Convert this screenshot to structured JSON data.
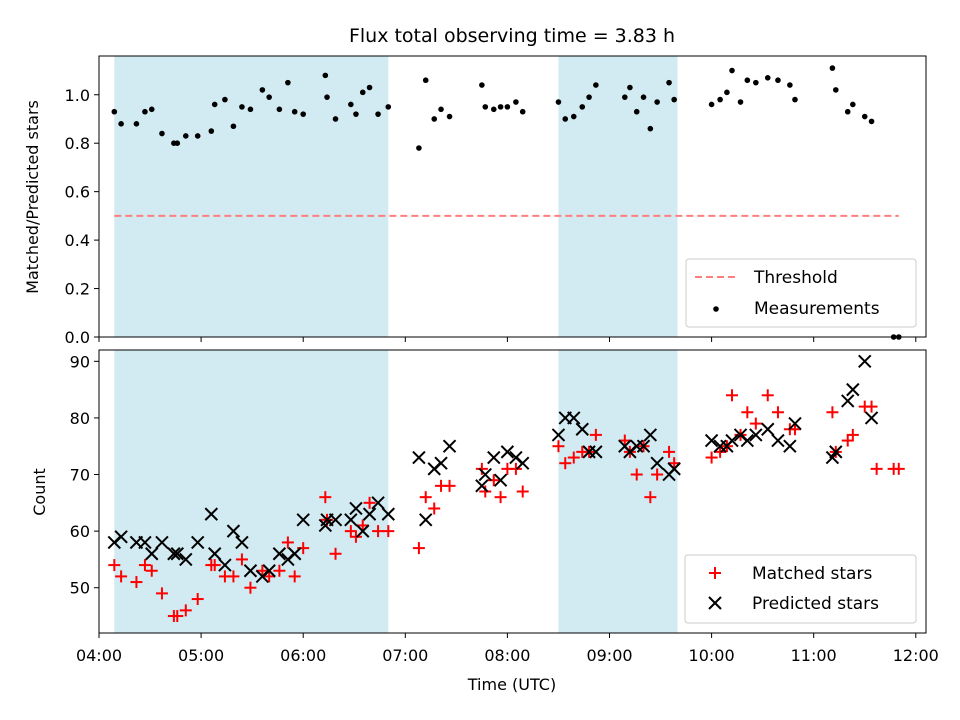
{
  "figure": {
    "title": "Flux total observing time = 3.83 h",
    "xlabel": "Time (UTC)"
  },
  "colors": {
    "shade": "#add8e6",
    "threshold": "#ff7f7f",
    "matched": "#ff0000",
    "predicted": "#000000",
    "measurement": "#000000"
  },
  "chart_data": [
    {
      "type": "scatter",
      "ylabel": "Matched/Predicted stars",
      "xlim": [
        "04:00",
        "12:06"
      ],
      "ylim": [
        0,
        1.16
      ],
      "yticks": [
        0.0,
        0.2,
        0.4,
        0.6,
        0.8,
        1.0
      ],
      "grid": false,
      "legend_position": "lower-right",
      "shaded_intervals": [
        [
          "04:09",
          "06:50"
        ],
        [
          "08:30",
          "09:40"
        ]
      ],
      "threshold": {
        "name": "Threshold",
        "value": 0.5,
        "x_range": [
          "04:09",
          "11:50"
        ]
      },
      "series": [
        {
          "name": "Measurements",
          "points": [
            [
              "04:09",
              0.93
            ],
            [
              "04:13",
              0.88
            ],
            [
              "04:22",
              0.88
            ],
            [
              "04:27",
              0.93
            ],
            [
              "04:31",
              0.94
            ],
            [
              "04:37",
              0.84
            ],
            [
              "04:44",
              0.8
            ],
            [
              "04:46",
              0.8
            ],
            [
              "04:51",
              0.83
            ],
            [
              "04:58",
              0.83
            ],
            [
              "05:06",
              0.85
            ],
            [
              "05:08",
              0.96
            ],
            [
              "05:14",
              0.98
            ],
            [
              "05:19",
              0.87
            ],
            [
              "05:24",
              0.95
            ],
            [
              "05:29",
              0.94
            ],
            [
              "05:36",
              1.02
            ],
            [
              "05:40",
              0.99
            ],
            [
              "05:46",
              0.94
            ],
            [
              "05:51",
              1.05
            ],
            [
              "05:55",
              0.93
            ],
            [
              "06:00",
              0.92
            ],
            [
              "06:13",
              1.08
            ],
            [
              "06:14",
              0.99
            ],
            [
              "06:19",
              0.9
            ],
            [
              "06:28",
              0.96
            ],
            [
              "06:31",
              0.92
            ],
            [
              "06:35",
              1.01
            ],
            [
              "06:39",
              1.03
            ],
            [
              "06:44",
              0.92
            ],
            [
              "06:50",
              0.95
            ],
            [
              "07:08",
              0.78
            ],
            [
              "07:12",
              1.06
            ],
            [
              "07:17",
              0.9
            ],
            [
              "07:21",
              0.94
            ],
            [
              "07:26",
              0.91
            ],
            [
              "07:45",
              1.04
            ],
            [
              "07:47",
              0.95
            ],
            [
              "07:52",
              0.94
            ],
            [
              "07:56",
              0.95
            ],
            [
              "08:00",
              0.95
            ],
            [
              "08:05",
              0.97
            ],
            [
              "08:09",
              0.93
            ],
            [
              "08:30",
              0.97
            ],
            [
              "08:34",
              0.9
            ],
            [
              "08:39",
              0.91
            ],
            [
              "08:44",
              0.95
            ],
            [
              "08:48",
              0.99
            ],
            [
              "08:52",
              1.04
            ],
            [
              "09:09",
              0.99
            ],
            [
              "09:12",
              1.03
            ],
            [
              "09:16",
              0.93
            ],
            [
              "09:20",
              0.99
            ],
            [
              "09:24",
              0.86
            ],
            [
              "09:28",
              0.97
            ],
            [
              "09:35",
              1.05
            ],
            [
              "09:38",
              0.98
            ],
            [
              "10:00",
              0.96
            ],
            [
              "10:05",
              0.98
            ],
            [
              "10:09",
              1.01
            ],
            [
              "10:12",
              1.1
            ],
            [
              "10:17",
              0.97
            ],
            [
              "10:21",
              1.06
            ],
            [
              "10:26",
              1.05
            ],
            [
              "10:33",
              1.07
            ],
            [
              "10:39",
              1.06
            ],
            [
              "10:46",
              1.04
            ],
            [
              "10:49",
              0.98
            ],
            [
              "11:11",
              1.11
            ],
            [
              "11:13",
              1.02
            ],
            [
              "11:20",
              0.93
            ],
            [
              "11:23",
              0.96
            ],
            [
              "11:30",
              0.91
            ],
            [
              "11:34",
              0.89
            ],
            [
              "11:47",
              0.0
            ],
            [
              "11:50",
              0.0
            ]
          ]
        }
      ]
    },
    {
      "type": "scatter",
      "ylabel": "Count",
      "xlim": [
        "04:00",
        "12:06"
      ],
      "ylim": [
        42,
        92
      ],
      "yticks": [
        50,
        60,
        70,
        80,
        90
      ],
      "xticks": [
        "04:00",
        "05:00",
        "06:00",
        "07:00",
        "08:00",
        "09:00",
        "10:00",
        "11:00",
        "12:00"
      ],
      "grid": false,
      "legend_position": "lower-right",
      "shaded_intervals": [
        [
          "04:09",
          "06:50"
        ],
        [
          "08:30",
          "09:40"
        ]
      ],
      "series": [
        {
          "name": "Matched stars",
          "points": [
            [
              "04:09",
              54
            ],
            [
              "04:13",
              52
            ],
            [
              "04:22",
              51
            ],
            [
              "04:27",
              54
            ],
            [
              "04:31",
              53
            ],
            [
              "04:37",
              49
            ],
            [
              "04:44",
              45
            ],
            [
              "04:46",
              45
            ],
            [
              "04:51",
              46
            ],
            [
              "04:58",
              48
            ],
            [
              "05:06",
              54
            ],
            [
              "05:08",
              54
            ],
            [
              "05:14",
              52
            ],
            [
              "05:19",
              52
            ],
            [
              "05:24",
              55
            ],
            [
              "05:29",
              50
            ],
            [
              "05:36",
              53
            ],
            [
              "05:40",
              52
            ],
            [
              "05:46",
              53
            ],
            [
              "05:51",
              58
            ],
            [
              "05:55",
              52
            ],
            [
              "06:00",
              57
            ],
            [
              "06:13",
              66
            ],
            [
              "06:14",
              62
            ],
            [
              "06:19",
              56
            ],
            [
              "06:28",
              60
            ],
            [
              "06:31",
              59
            ],
            [
              "06:35",
              61
            ],
            [
              "06:39",
              65
            ],
            [
              "06:44",
              60
            ],
            [
              "06:50",
              60
            ],
            [
              "07:08",
              57
            ],
            [
              "07:12",
              66
            ],
            [
              "07:17",
              64
            ],
            [
              "07:21",
              68
            ],
            [
              "07:26",
              68
            ],
            [
              "07:45",
              71
            ],
            [
              "07:47",
              67
            ],
            [
              "07:52",
              69
            ],
            [
              "07:56",
              66
            ],
            [
              "08:00",
              71
            ],
            [
              "08:05",
              71
            ],
            [
              "08:09",
              67
            ],
            [
              "08:30",
              75
            ],
            [
              "08:34",
              72
            ],
            [
              "08:39",
              73
            ],
            [
              "08:44",
              74
            ],
            [
              "08:48",
              74
            ],
            [
              "08:52",
              77
            ],
            [
              "09:09",
              76
            ],
            [
              "09:12",
              74
            ],
            [
              "09:16",
              70
            ],
            [
              "09:20",
              75
            ],
            [
              "09:24",
              66
            ],
            [
              "09:28",
              70
            ],
            [
              "09:35",
              74
            ],
            [
              "09:38",
              72
            ],
            [
              "10:00",
              73
            ],
            [
              "10:05",
              74
            ],
            [
              "10:09",
              75
            ],
            [
              "10:12",
              84
            ],
            [
              "10:17",
              77
            ],
            [
              "10:21",
              81
            ],
            [
              "10:26",
              79
            ],
            [
              "10:33",
              84
            ],
            [
              "10:39",
              81
            ],
            [
              "10:46",
              78
            ],
            [
              "10:49",
              78
            ],
            [
              "11:11",
              81
            ],
            [
              "11:13",
              74
            ],
            [
              "11:20",
              76
            ],
            [
              "11:23",
              77
            ],
            [
              "11:30",
              82
            ],
            [
              "11:34",
              82
            ],
            [
              "11:37",
              71
            ],
            [
              "11:47",
              71
            ],
            [
              "11:50",
              71
            ]
          ]
        },
        {
          "name": "Predicted stars",
          "points": [
            [
              "04:09",
              58
            ],
            [
              "04:13",
              59
            ],
            [
              "04:22",
              58
            ],
            [
              "04:27",
              58
            ],
            [
              "04:31",
              56
            ],
            [
              "04:37",
              58
            ],
            [
              "04:44",
              56
            ],
            [
              "04:46",
              56
            ],
            [
              "04:51",
              55
            ],
            [
              "04:58",
              58
            ],
            [
              "05:06",
              63
            ],
            [
              "05:08",
              56
            ],
            [
              "05:14",
              54
            ],
            [
              "05:19",
              60
            ],
            [
              "05:24",
              58
            ],
            [
              "05:29",
              53
            ],
            [
              "05:36",
              52
            ],
            [
              "05:40",
              53
            ],
            [
              "05:46",
              56
            ],
            [
              "05:51",
              55
            ],
            [
              "05:55",
              56
            ],
            [
              "06:00",
              62
            ],
            [
              "06:13",
              61
            ],
            [
              "06:14",
              62
            ],
            [
              "06:19",
              62
            ],
            [
              "06:28",
              62
            ],
            [
              "06:31",
              64
            ],
            [
              "06:35",
              60
            ],
            [
              "06:39",
              63
            ],
            [
              "06:44",
              65
            ],
            [
              "06:50",
              63
            ],
            [
              "07:08",
              73
            ],
            [
              "07:12",
              62
            ],
            [
              "07:17",
              71
            ],
            [
              "07:21",
              72
            ],
            [
              "07:26",
              75
            ],
            [
              "07:45",
              68
            ],
            [
              "07:47",
              70
            ],
            [
              "07:52",
              73
            ],
            [
              "07:56",
              69
            ],
            [
              "08:00",
              74
            ],
            [
              "08:05",
              73
            ],
            [
              "08:09",
              72
            ],
            [
              "08:30",
              77
            ],
            [
              "08:34",
              80
            ],
            [
              "08:39",
              80
            ],
            [
              "08:44",
              78
            ],
            [
              "08:48",
              74
            ],
            [
              "08:52",
              74
            ],
            [
              "09:09",
              75
            ],
            [
              "09:12",
              74
            ],
            [
              "09:16",
              75
            ],
            [
              "09:20",
              75
            ],
            [
              "09:24",
              77
            ],
            [
              "09:28",
              72
            ],
            [
              "09:35",
              70
            ],
            [
              "09:38",
              71
            ],
            [
              "10:00",
              76
            ],
            [
              "10:05",
              75
            ],
            [
              "10:09",
              75
            ],
            [
              "10:12",
              76
            ],
            [
              "10:17",
              77
            ],
            [
              "10:21",
              76
            ],
            [
              "10:26",
              77
            ],
            [
              "10:33",
              78
            ],
            [
              "10:39",
              76
            ],
            [
              "10:46",
              75
            ],
            [
              "10:49",
              79
            ],
            [
              "11:11",
              73
            ],
            [
              "11:13",
              74
            ],
            [
              "11:20",
              83
            ],
            [
              "11:23",
              85
            ],
            [
              "11:30",
              90
            ],
            [
              "11:34",
              80
            ]
          ]
        }
      ]
    }
  ]
}
